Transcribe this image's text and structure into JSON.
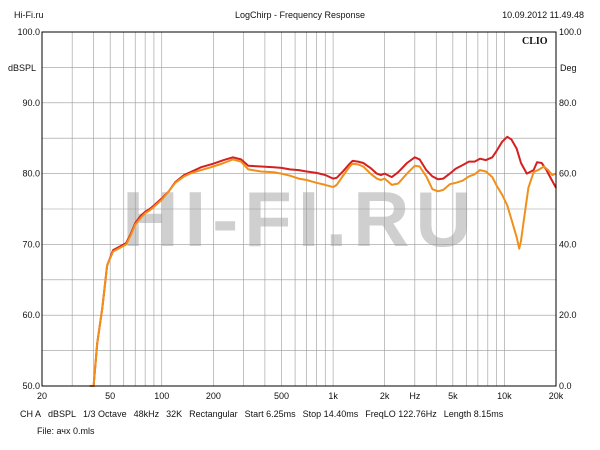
{
  "header": {
    "site": "Hi-Fi.ru",
    "title": "LogChirp - Frequency Response",
    "datetime": "10.09.2012 11.49.48"
  },
  "brand": "CLIO",
  "watermark": "HI-FI.RU",
  "footer": {
    "status": [
      "CH A",
      "dBSPL",
      "1/3 Octave",
      "48kHz",
      "32K",
      "Rectangular",
      "Start 6.25ms",
      "Stop 14.40ms",
      "FreqLO 122.76Hz",
      "Length 8.15ms"
    ],
    "file": "File: ачх 0.mls"
  },
  "chart_data": {
    "type": "line",
    "x_scale": "log",
    "xlim": [
      20,
      20000
    ],
    "ylim_left": [
      50,
      100
    ],
    "ylim_right": [
      0,
      100
    ],
    "left_unit": "dBSPL",
    "right_unit": "Deg",
    "grid": true,
    "colors": {
      "series_red": "#d42020",
      "series_orange": "#f0901a"
    },
    "x_tick_labels": [
      {
        "v": 20,
        "t": "20"
      },
      {
        "v": 50,
        "t": "50"
      },
      {
        "v": 100,
        "t": "100"
      },
      {
        "v": 200,
        "t": "200"
      },
      {
        "v": 500,
        "t": "500"
      },
      {
        "v": 1000,
        "t": "1k"
      },
      {
        "v": 2000,
        "t": "2k"
      },
      {
        "v": 3000,
        "t": "Hz"
      },
      {
        "v": 5000,
        "t": "5k"
      },
      {
        "v": 10000,
        "t": "10k"
      },
      {
        "v": 20000,
        "t": "20k"
      }
    ],
    "y_left_ticks": [
      {
        "v": 100,
        "t": "100.0"
      },
      {
        "v": 90,
        "t": "90.0"
      },
      {
        "v": 80,
        "t": "80.0"
      },
      {
        "v": 70,
        "t": "70.0"
      },
      {
        "v": 60,
        "t": "60.0"
      },
      {
        "v": 50,
        "t": "50.0"
      }
    ],
    "y_right_ticks": [
      {
        "v": 100,
        "t": "100.0"
      },
      {
        "v": 80,
        "t": "80.0"
      },
      {
        "v": 60,
        "t": "60.0"
      },
      {
        "v": 40,
        "t": "40.0"
      },
      {
        "v": 20,
        "t": "20.0"
      },
      {
        "v": 0,
        "t": "0.0"
      }
    ],
    "series": [
      {
        "color": "#d42020",
        "points": [
          [
            38,
            48
          ],
          [
            40,
            50
          ],
          [
            42,
            56
          ],
          [
            45,
            61
          ],
          [
            48,
            67
          ],
          [
            52,
            69.2
          ],
          [
            57,
            69.7
          ],
          [
            62,
            70.2
          ],
          [
            66,
            71.5
          ],
          [
            70,
            73
          ],
          [
            75,
            74
          ],
          [
            80,
            74.6
          ],
          [
            85,
            75
          ],
          [
            90,
            75.5
          ],
          [
            100,
            76.5
          ],
          [
            110,
            77.5
          ],
          [
            120,
            78.8
          ],
          [
            135,
            79.8
          ],
          [
            150,
            80.3
          ],
          [
            170,
            80.9
          ],
          [
            200,
            81.4
          ],
          [
            230,
            81.9
          ],
          [
            260,
            82.3
          ],
          [
            290,
            82
          ],
          [
            320,
            81.1
          ],
          [
            380,
            81
          ],
          [
            450,
            80.9
          ],
          [
            500,
            80.8
          ],
          [
            560,
            80.6
          ],
          [
            630,
            80.5
          ],
          [
            700,
            80.3
          ],
          [
            800,
            80.1
          ],
          [
            900,
            79.8
          ],
          [
            1000,
            79.3
          ],
          [
            1050,
            79.4
          ],
          [
            1150,
            80.4
          ],
          [
            1250,
            81.4
          ],
          [
            1300,
            81.8
          ],
          [
            1400,
            81.7
          ],
          [
            1500,
            81.5
          ],
          [
            1650,
            80.8
          ],
          [
            1800,
            80
          ],
          [
            1900,
            79.8
          ],
          [
            2000,
            80
          ],
          [
            2200,
            79.5
          ],
          [
            2400,
            80.2
          ],
          [
            2700,
            81.5
          ],
          [
            3000,
            82.3
          ],
          [
            3200,
            82
          ],
          [
            3500,
            80.5
          ],
          [
            3800,
            79.6
          ],
          [
            4100,
            79.2
          ],
          [
            4400,
            79.3
          ],
          [
            4800,
            80
          ],
          [
            5200,
            80.7
          ],
          [
            5700,
            81.2
          ],
          [
            6200,
            81.7
          ],
          [
            6700,
            81.7
          ],
          [
            7200,
            82.1
          ],
          [
            7800,
            81.9
          ],
          [
            8500,
            82.3
          ],
          [
            9000,
            83.2
          ],
          [
            9700,
            84.5
          ],
          [
            10400,
            85.2
          ],
          [
            11000,
            84.8
          ],
          [
            11800,
            83.5
          ],
          [
            12500,
            81.5
          ],
          [
            13500,
            80
          ],
          [
            14800,
            80.5
          ],
          [
            15500,
            81.6
          ],
          [
            16500,
            81.5
          ],
          [
            17500,
            80.6
          ],
          [
            18500,
            79.5
          ],
          [
            20000,
            78
          ]
        ]
      },
      {
        "color": "#f0901a",
        "points": [
          [
            38,
            48
          ],
          [
            40,
            50
          ],
          [
            42,
            56
          ],
          [
            45,
            61
          ],
          [
            48,
            67
          ],
          [
            52,
            69
          ],
          [
            57,
            69.5
          ],
          [
            62,
            70
          ],
          [
            66,
            71.3
          ],
          [
            70,
            72.8
          ],
          [
            75,
            73.7
          ],
          [
            80,
            74.4
          ],
          [
            85,
            74.8
          ],
          [
            90,
            75.3
          ],
          [
            100,
            76.3
          ],
          [
            110,
            77.5
          ],
          [
            120,
            78.7
          ],
          [
            135,
            79.6
          ],
          [
            150,
            80.1
          ],
          [
            170,
            80.5
          ],
          [
            200,
            81
          ],
          [
            230,
            81.5
          ],
          [
            260,
            82
          ],
          [
            290,
            81.7
          ],
          [
            320,
            80.6
          ],
          [
            380,
            80.3
          ],
          [
            450,
            80.2
          ],
          [
            500,
            80
          ],
          [
            560,
            79.7
          ],
          [
            630,
            79.3
          ],
          [
            700,
            79.1
          ],
          [
            800,
            78.7
          ],
          [
            900,
            78.4
          ],
          [
            1000,
            78.1
          ],
          [
            1050,
            78.4
          ],
          [
            1150,
            79.8
          ],
          [
            1250,
            81
          ],
          [
            1300,
            81.4
          ],
          [
            1400,
            81.3
          ],
          [
            1500,
            81
          ],
          [
            1650,
            80
          ],
          [
            1800,
            79.3
          ],
          [
            1900,
            79.1
          ],
          [
            2000,
            79.3
          ],
          [
            2200,
            78.4
          ],
          [
            2400,
            78.6
          ],
          [
            2700,
            80
          ],
          [
            3000,
            81.1
          ],
          [
            3200,
            81
          ],
          [
            3500,
            79.6
          ],
          [
            3800,
            77.8
          ],
          [
            4100,
            77.5
          ],
          [
            4400,
            77.7
          ],
          [
            4800,
            78.5
          ],
          [
            5200,
            78.7
          ],
          [
            5700,
            79
          ],
          [
            6200,
            79.6
          ],
          [
            6700,
            79.9
          ],
          [
            7200,
            80.5
          ],
          [
            7800,
            80.3
          ],
          [
            8500,
            79.5
          ],
          [
            9000,
            78.3
          ],
          [
            9700,
            77
          ],
          [
            10400,
            75.5
          ],
          [
            11000,
            73.5
          ],
          [
            11800,
            71
          ],
          [
            12200,
            69.4
          ],
          [
            12500,
            70.5
          ],
          [
            13000,
            73.5
          ],
          [
            13800,
            78
          ],
          [
            14800,
            80.2
          ],
          [
            16000,
            80.6
          ],
          [
            17000,
            81
          ],
          [
            18000,
            80.5
          ],
          [
            19000,
            79.8
          ],
          [
            20000,
            80
          ]
        ]
      }
    ]
  }
}
